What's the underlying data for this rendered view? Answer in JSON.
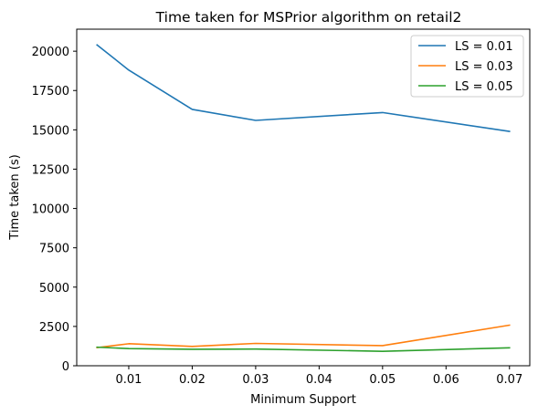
{
  "chart_data": {
    "type": "line",
    "title": "Time taken for MSPrior algorithm on retail2",
    "xlabel": "Minimum Support",
    "ylabel": "Time taken (s)",
    "x": [
      0.005,
      0.01,
      0.02,
      0.03,
      0.05,
      0.07
    ],
    "xlim": [
      0.0018,
      0.0732
    ],
    "ylim": [
      0,
      21400
    ],
    "xticks": [
      0.01,
      0.02,
      0.03,
      0.04,
      0.05,
      0.06,
      0.07
    ],
    "xtick_labels": [
      "0.01",
      "0.02",
      "0.03",
      "0.04",
      "0.05",
      "0.06",
      "0.07"
    ],
    "yticks": [
      0,
      2500,
      5000,
      7500,
      10000,
      12500,
      15000,
      17500,
      20000
    ],
    "ytick_labels": [
      "0",
      "2500",
      "5000",
      "7500",
      "10000",
      "12500",
      "15000",
      "17500",
      "20000"
    ],
    "grid": false,
    "legend_position": "top-right",
    "series": [
      {
        "name": "LS = 0.01",
        "color": "#1f77b4",
        "values": [
          20400,
          18800,
          16300,
          15600,
          16100,
          14900
        ]
      },
      {
        "name": "LS = 0.03",
        "color": "#ff7f0e",
        "values": [
          1150,
          1400,
          1230,
          1420,
          1280,
          2580
        ]
      },
      {
        "name": "LS = 0.05",
        "color": "#2ca02c",
        "values": [
          1180,
          1090,
          1050,
          1060,
          920,
          1140
        ]
      }
    ]
  }
}
